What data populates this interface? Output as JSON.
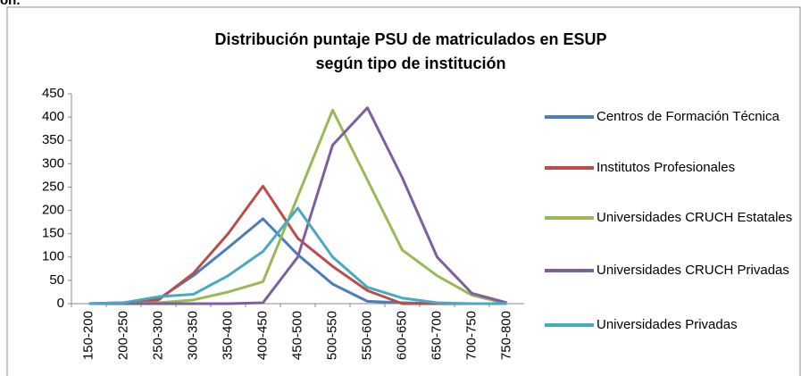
{
  "caption_fragment": "ón.",
  "chart_data": {
    "type": "line",
    "title": "Distribución puntaje PSU de matriculados en ESUP",
    "subtitle": "según tipo de institución",
    "categories": [
      "150-200",
      "200-250",
      "250-300",
      "300-350",
      "350-400",
      "400-450",
      "450-500",
      "500-550",
      "550-600",
      "600-650",
      "650-700",
      "700-750",
      "750-800"
    ],
    "series": [
      {
        "name": "Centros de Formación Técnica",
        "color": "#4a7ebb",
        "values": [
          0,
          2,
          10,
          60,
          120,
          182,
          105,
          42,
          5,
          2,
          0,
          0,
          0
        ]
      },
      {
        "name": "Institutos Profesionales",
        "color": "#be4b48",
        "values": [
          0,
          2,
          8,
          65,
          150,
          252,
          140,
          80,
          28,
          0,
          0,
          0,
          0
        ]
      },
      {
        "name": "Universidades CRUCH Estatales",
        "color": "#98b954",
        "values": [
          0,
          0,
          2,
          8,
          25,
          47,
          230,
          415,
          265,
          115,
          60,
          18,
          0
        ]
      },
      {
        "name": "Universidades CRUCH Privadas",
        "color": "#7d5fa0",
        "values": [
          0,
          0,
          0,
          0,
          0,
          2,
          100,
          340,
          420,
          270,
          100,
          22,
          2
        ]
      },
      {
        "name": "Universidades Privadas",
        "color": "#46aac5",
        "values": [
          0,
          2,
          15,
          20,
          60,
          112,
          205,
          100,
          35,
          12,
          2,
          0,
          0
        ]
      }
    ],
    "ylim": [
      0,
      450
    ],
    "yticks": [
      0,
      50,
      100,
      150,
      200,
      250,
      300,
      350,
      400,
      450
    ],
    "legend": "right"
  }
}
